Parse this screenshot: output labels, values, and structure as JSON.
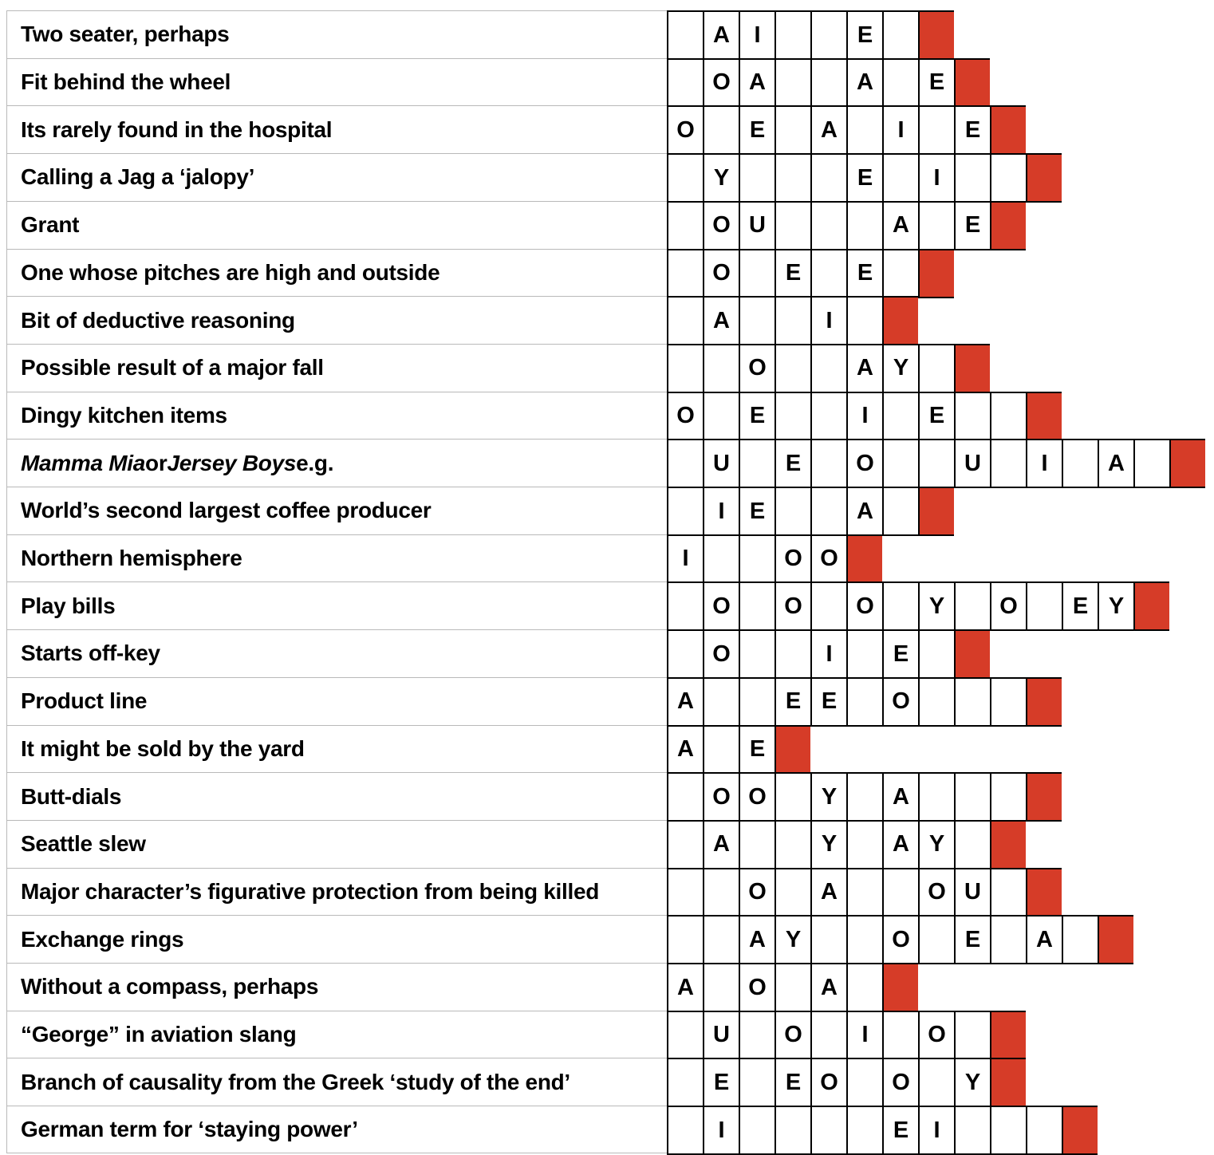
{
  "colors": {
    "red_box": "#d63c28",
    "grid_border": "#000000",
    "separator_line": "#b9b9b9",
    "text": "#000000"
  },
  "rows": [
    {
      "clue_parts": [
        {
          "text": "Two seater, perhaps",
          "italic": false
        }
      ],
      "cells": [
        "",
        "A",
        "I",
        "",
        "",
        "E",
        ""
      ],
      "red_end": true
    },
    {
      "clue_parts": [
        {
          "text": "Fit behind the wheel",
          "italic": false
        }
      ],
      "cells": [
        "",
        "O",
        "A",
        "",
        "",
        "A",
        "",
        "E"
      ],
      "red_end": true
    },
    {
      "clue_parts": [
        {
          "text": "Its rarely found in the hospital",
          "italic": false
        }
      ],
      "cells": [
        "O",
        "",
        "E",
        "",
        "A",
        "",
        "I",
        "",
        "E"
      ],
      "red_end": true
    },
    {
      "clue_parts": [
        {
          "text": "Calling a Jag a ‘jalopy’",
          "italic": false
        }
      ],
      "cells": [
        "",
        "Y",
        "",
        "",
        "",
        "E",
        "",
        "I",
        "",
        ""
      ],
      "red_end": true
    },
    {
      "clue_parts": [
        {
          "text": "Grant",
          "italic": false
        }
      ],
      "cells": [
        "",
        "O",
        "U",
        "",
        "",
        "",
        "A",
        "",
        "E"
      ],
      "red_end": true
    },
    {
      "clue_parts": [
        {
          "text": "One whose pitches are high and outside",
          "italic": false
        }
      ],
      "cells": [
        "",
        "O",
        "",
        "E",
        "",
        "E",
        ""
      ],
      "red_end": true
    },
    {
      "clue_parts": [
        {
          "text": "Bit of deductive reasoning",
          "italic": false
        }
      ],
      "cells": [
        "",
        "A",
        "",
        "",
        "I",
        ""
      ],
      "red_end": true
    },
    {
      "clue_parts": [
        {
          "text": "Possible result of a major fall",
          "italic": false
        }
      ],
      "cells": [
        "",
        "",
        "O",
        "",
        "",
        "A",
        "Y",
        ""
      ],
      "red_end": true
    },
    {
      "clue_parts": [
        {
          "text": "Dingy kitchen items",
          "italic": false
        }
      ],
      "cells": [
        "O",
        "",
        "E",
        "",
        "",
        "I",
        "",
        "E",
        "",
        ""
      ],
      "red_end": true
    },
    {
      "clue_parts": [
        {
          "text": "Mamma Mia",
          "italic": true
        },
        {
          "text": " or ",
          "italic": false
        },
        {
          "text": "Jersey Boys",
          "italic": true
        },
        {
          "text": " e.g.",
          "italic": false
        }
      ],
      "cells": [
        "",
        "U",
        "",
        "E",
        "",
        "O",
        "",
        "",
        "U",
        "",
        "I",
        "",
        "A",
        ""
      ],
      "red_end": true
    },
    {
      "clue_parts": [
        {
          "text": "World’s second largest coffee producer",
          "italic": false
        }
      ],
      "cells": [
        "",
        "I",
        "E",
        "",
        "",
        "A",
        ""
      ],
      "red_end": true
    },
    {
      "clue_parts": [
        {
          "text": "Northern hemisphere",
          "italic": false
        }
      ],
      "cells": [
        "I",
        "",
        "",
        "O",
        "O"
      ],
      "red_end": true
    },
    {
      "clue_parts": [
        {
          "text": "Play bills",
          "italic": false
        }
      ],
      "cells": [
        "",
        "O",
        "",
        "O",
        "",
        "O",
        "",
        "Y",
        "",
        "O",
        "",
        "E",
        "Y"
      ],
      "red_end": true
    },
    {
      "clue_parts": [
        {
          "text": "Starts off-key",
          "italic": false
        }
      ],
      "cells": [
        "",
        "O",
        "",
        "",
        "I",
        "",
        "E",
        ""
      ],
      "red_end": true
    },
    {
      "clue_parts": [
        {
          "text": "Product line",
          "italic": false
        }
      ],
      "cells": [
        "A",
        "",
        "",
        "E",
        "E",
        "",
        "O",
        "",
        "",
        ""
      ],
      "red_end": true
    },
    {
      "clue_parts": [
        {
          "text": "It might be sold by the yard",
          "italic": false
        }
      ],
      "cells": [
        "A",
        "",
        "E"
      ],
      "red_end": true
    },
    {
      "clue_parts": [
        {
          "text": "Butt-dials",
          "italic": false
        }
      ],
      "cells": [
        "",
        "O",
        "O",
        "",
        "Y",
        "",
        "A",
        "",
        "",
        ""
      ],
      "red_end": true
    },
    {
      "clue_parts": [
        {
          "text": "Seattle slew",
          "italic": false
        }
      ],
      "cells": [
        "",
        "A",
        "",
        "",
        "Y",
        "",
        "A",
        "Y",
        ""
      ],
      "red_end": true
    },
    {
      "clue_parts": [
        {
          "text": "Major character’s figurative protection from being killed",
          "italic": false
        }
      ],
      "cells": [
        "",
        "",
        "O",
        "",
        "A",
        "",
        "",
        "O",
        "U",
        ""
      ],
      "red_end": true
    },
    {
      "clue_parts": [
        {
          "text": "Exchange rings",
          "italic": false
        }
      ],
      "cells": [
        "",
        "",
        "A",
        "Y",
        "",
        "",
        "O",
        "",
        "E",
        "",
        "A",
        ""
      ],
      "red_end": true
    },
    {
      "clue_parts": [
        {
          "text": "Without a compass, perhaps",
          "italic": false
        }
      ],
      "cells": [
        "A",
        "",
        "O",
        "",
        "A",
        ""
      ],
      "red_end": true
    },
    {
      "clue_parts": [
        {
          "text": "“George” in aviation slang",
          "italic": false
        }
      ],
      "cells": [
        "",
        "U",
        "",
        "O",
        "",
        "I",
        "",
        "O",
        ""
      ],
      "red_end": true
    },
    {
      "clue_parts": [
        {
          "text": "Branch of causality from the Greek ‘study of the end’",
          "italic": false
        }
      ],
      "cells": [
        "",
        "E",
        "",
        "E",
        "O",
        "",
        "O",
        "",
        "Y"
      ],
      "red_end": true
    },
    {
      "clue_parts": [
        {
          "text": "German term for ‘staying power’",
          "italic": false
        }
      ],
      "cells": [
        "",
        "I",
        "",
        "",
        "",
        "",
        "E",
        "I",
        "",
        "",
        ""
      ],
      "red_end": true
    }
  ]
}
